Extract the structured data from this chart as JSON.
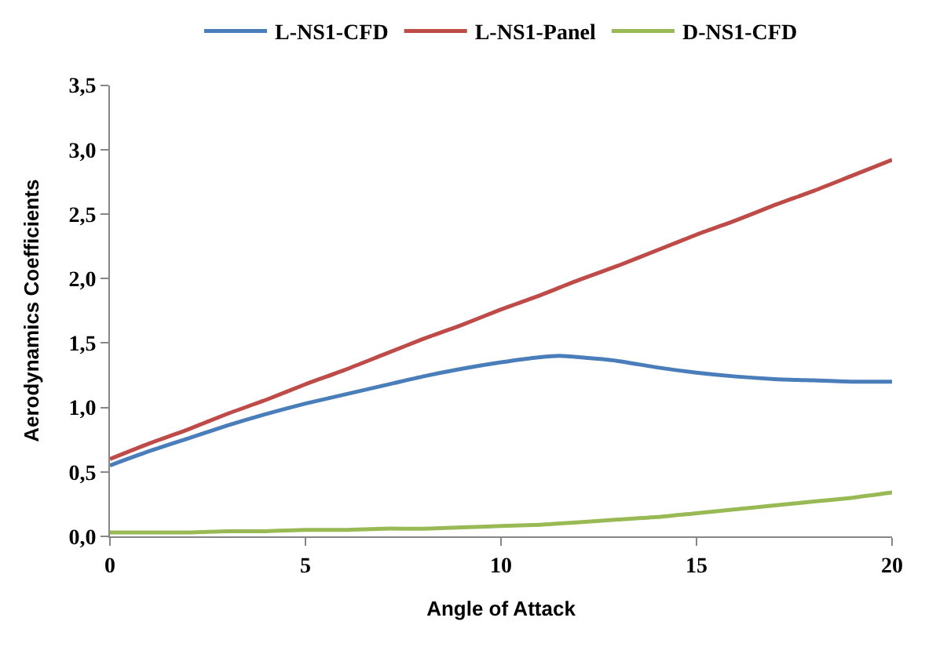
{
  "chart_data": {
    "type": "line",
    "xlabel": "Angle of Attack",
    "ylabel": "Aerodynamics Coefficients",
    "x": [
      0,
      1,
      2,
      3,
      4,
      5,
      6,
      7,
      8,
      9,
      10,
      11,
      11.5,
      12,
      13,
      14,
      15,
      16,
      17,
      18,
      19,
      20
    ],
    "series": [
      {
        "name": "L-NS1-CFD",
        "color": "#4a7ebb",
        "values": [
          0.55,
          0.66,
          0.76,
          0.86,
          0.95,
          1.03,
          1.1,
          1.17,
          1.24,
          1.3,
          1.35,
          1.39,
          1.4,
          1.39,
          1.36,
          1.31,
          1.27,
          1.24,
          1.22,
          1.21,
          1.2,
          1.2
        ]
      },
      {
        "name": "L-NS1-Panel",
        "color": "#be4b48",
        "values": [
          0.6,
          0.72,
          0.83,
          0.95,
          1.06,
          1.18,
          1.29,
          1.41,
          1.53,
          1.64,
          1.76,
          1.87,
          1.93,
          1.99,
          2.1,
          2.22,
          2.34,
          2.45,
          2.57,
          2.68,
          2.8,
          2.92
        ]
      },
      {
        "name": "D-NS1-CFD",
        "color": "#98b954",
        "values": [
          0.03,
          0.03,
          0.03,
          0.04,
          0.04,
          0.05,
          0.05,
          0.06,
          0.06,
          0.07,
          0.08,
          0.09,
          0.1,
          0.11,
          0.13,
          0.15,
          0.18,
          0.21,
          0.24,
          0.27,
          0.3,
          0.34
        ]
      }
    ],
    "xlim": [
      0,
      20
    ],
    "xticks": [
      0,
      5,
      10,
      15,
      20
    ],
    "ylim": [
      0,
      3.5
    ],
    "yticks": [
      {
        "value": 0,
        "label": "0,0"
      },
      {
        "value": 0.5,
        "label": "0,5"
      },
      {
        "value": 1,
        "label": "1,0"
      },
      {
        "value": 1.5,
        "label": "1,5"
      },
      {
        "value": 2,
        "label": "2,0"
      },
      {
        "value": 2.5,
        "label": "2,5"
      },
      {
        "value": 3,
        "label": "3,0"
      },
      {
        "value": 3.5,
        "label": "3,5"
      }
    ],
    "legend": "top",
    "marker": "none",
    "line_style": "solid"
  }
}
